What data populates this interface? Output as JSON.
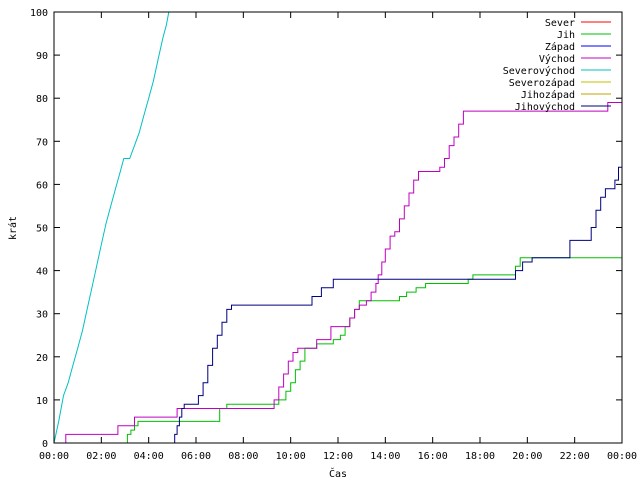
{
  "chart_data": {
    "type": "line",
    "xlabel": "Čas",
    "ylabel": "krát",
    "xlim": [
      0,
      24
    ],
    "ylim": [
      0,
      100
    ],
    "x_ticks": [
      0,
      2,
      4,
      6,
      8,
      10,
      12,
      14,
      16,
      18,
      20,
      22,
      24
    ],
    "x_tick_labels": [
      "00:00",
      "02:00",
      "04:00",
      "06:00",
      "08:00",
      "10:00",
      "12:00",
      "14:00",
      "16:00",
      "18:00",
      "20:00",
      "22:00",
      "00:00"
    ],
    "y_ticks": [
      0,
      10,
      20,
      30,
      40,
      50,
      60,
      70,
      80,
      90,
      100
    ],
    "grid": false,
    "legend_position": "top-right",
    "series": [
      {
        "name": "Sever",
        "color": "#ff0000",
        "points": []
      },
      {
        "name": "Jih",
        "color": "#00c000",
        "points": [
          [
            0,
            0
          ],
          [
            3.1,
            0
          ],
          [
            3.1,
            2
          ],
          [
            3.25,
            2
          ],
          [
            3.25,
            3
          ],
          [
            3.4,
            3
          ],
          [
            3.4,
            4
          ],
          [
            3.55,
            4
          ],
          [
            3.55,
            5
          ],
          [
            7.0,
            5
          ],
          [
            7.0,
            8
          ],
          [
            7.3,
            8
          ],
          [
            7.3,
            9
          ],
          [
            9.5,
            9
          ],
          [
            9.5,
            10
          ],
          [
            9.8,
            10
          ],
          [
            9.8,
            12
          ],
          [
            10.0,
            12
          ],
          [
            10.0,
            14
          ],
          [
            10.2,
            14
          ],
          [
            10.2,
            17
          ],
          [
            10.4,
            17
          ],
          [
            10.4,
            19
          ],
          [
            10.6,
            19
          ],
          [
            10.6,
            22
          ],
          [
            11.1,
            22
          ],
          [
            11.1,
            23
          ],
          [
            11.8,
            23
          ],
          [
            11.8,
            24
          ],
          [
            12.1,
            24
          ],
          [
            12.1,
            25
          ],
          [
            12.3,
            25
          ],
          [
            12.3,
            27
          ],
          [
            12.5,
            27
          ],
          [
            12.5,
            29
          ],
          [
            12.7,
            29
          ],
          [
            12.7,
            31
          ],
          [
            12.9,
            31
          ],
          [
            12.9,
            33
          ],
          [
            14.6,
            33
          ],
          [
            14.6,
            34
          ],
          [
            14.9,
            34
          ],
          [
            14.9,
            35
          ],
          [
            15.3,
            35
          ],
          [
            15.3,
            36
          ],
          [
            15.7,
            36
          ],
          [
            15.7,
            37
          ],
          [
            17.5,
            37
          ],
          [
            17.5,
            38
          ],
          [
            17.7,
            38
          ],
          [
            17.7,
            39
          ],
          [
            19.5,
            39
          ],
          [
            19.5,
            41
          ],
          [
            19.7,
            41
          ],
          [
            19.7,
            43
          ],
          [
            24,
            43
          ]
        ]
      },
      {
        "name": "Západ",
        "color": "#0000ff",
        "points": []
      },
      {
        "name": "Východ",
        "color": "#c000c0",
        "points": [
          [
            0.5,
            0
          ],
          [
            0.5,
            2
          ],
          [
            2.7,
            2
          ],
          [
            2.7,
            4
          ],
          [
            3.4,
            4
          ],
          [
            3.4,
            6
          ],
          [
            5.2,
            6
          ],
          [
            5.2,
            8
          ],
          [
            9.3,
            8
          ],
          [
            9.3,
            10
          ],
          [
            9.5,
            10
          ],
          [
            9.5,
            13
          ],
          [
            9.7,
            13
          ],
          [
            9.7,
            16
          ],
          [
            9.9,
            16
          ],
          [
            9.9,
            19
          ],
          [
            10.1,
            19
          ],
          [
            10.1,
            21
          ],
          [
            10.3,
            21
          ],
          [
            10.3,
            22
          ],
          [
            11.1,
            22
          ],
          [
            11.1,
            24
          ],
          [
            11.7,
            24
          ],
          [
            11.7,
            27
          ],
          [
            12.5,
            27
          ],
          [
            12.5,
            29
          ],
          [
            12.7,
            29
          ],
          [
            12.7,
            31
          ],
          [
            12.9,
            31
          ],
          [
            12.9,
            32
          ],
          [
            13.2,
            32
          ],
          [
            13.2,
            33
          ],
          [
            13.4,
            33
          ],
          [
            13.4,
            35
          ],
          [
            13.6,
            35
          ],
          [
            13.6,
            37
          ],
          [
            13.7,
            37
          ],
          [
            13.7,
            39
          ],
          [
            13.85,
            39
          ],
          [
            13.85,
            42
          ],
          [
            14.0,
            42
          ],
          [
            14.0,
            45
          ],
          [
            14.2,
            45
          ],
          [
            14.2,
            48
          ],
          [
            14.4,
            48
          ],
          [
            14.4,
            49
          ],
          [
            14.6,
            49
          ],
          [
            14.6,
            52
          ],
          [
            14.8,
            52
          ],
          [
            14.8,
            55
          ],
          [
            15.0,
            55
          ],
          [
            15.0,
            58
          ],
          [
            15.2,
            58
          ],
          [
            15.2,
            61
          ],
          [
            15.4,
            61
          ],
          [
            15.4,
            63
          ],
          [
            16.3,
            63
          ],
          [
            16.3,
            64
          ],
          [
            16.5,
            64
          ],
          [
            16.5,
            66
          ],
          [
            16.7,
            66
          ],
          [
            16.7,
            69
          ],
          [
            16.9,
            69
          ],
          [
            16.9,
            71
          ],
          [
            17.1,
            71
          ],
          [
            17.1,
            74
          ],
          [
            17.3,
            74
          ],
          [
            17.3,
            77
          ],
          [
            23.4,
            77
          ],
          [
            23.4,
            79
          ],
          [
            24,
            79
          ]
        ]
      },
      {
        "name": "Severovýchod",
        "color": "#00c0c0",
        "points": [
          [
            0,
            0
          ],
          [
            0.2,
            5
          ],
          [
            0.4,
            11
          ],
          [
            0.6,
            14
          ],
          [
            0.8,
            18
          ],
          [
            1.0,
            22
          ],
          [
            1.2,
            26
          ],
          [
            1.4,
            31
          ],
          [
            1.6,
            36
          ],
          [
            1.8,
            41
          ],
          [
            2.0,
            46
          ],
          [
            2.2,
            51
          ],
          [
            2.4,
            55
          ],
          [
            2.6,
            59
          ],
          [
            2.8,
            63
          ],
          [
            2.95,
            66
          ],
          [
            3.2,
            66
          ],
          [
            3.4,
            69
          ],
          [
            3.6,
            72
          ],
          [
            3.8,
            76
          ],
          [
            4.0,
            80
          ],
          [
            4.2,
            84
          ],
          [
            4.4,
            89
          ],
          [
            4.6,
            94
          ],
          [
            4.75,
            97
          ],
          [
            4.85,
            100
          ]
        ]
      },
      {
        "name": "Severozápad",
        "color": "#c0c000",
        "points": []
      },
      {
        "name": "Jihozápad",
        "color": "#c0a000",
        "points": []
      },
      {
        "name": "Jihovýchod",
        "color": "#000080",
        "points": [
          [
            0,
            0
          ],
          [
            5.1,
            0
          ],
          [
            5.1,
            2
          ],
          [
            5.2,
            2
          ],
          [
            5.2,
            4
          ],
          [
            5.3,
            4
          ],
          [
            5.3,
            6
          ],
          [
            5.4,
            6
          ],
          [
            5.4,
            8
          ],
          [
            5.5,
            8
          ],
          [
            5.5,
            9
          ],
          [
            6.1,
            9
          ],
          [
            6.1,
            11
          ],
          [
            6.3,
            11
          ],
          [
            6.3,
            14
          ],
          [
            6.5,
            14
          ],
          [
            6.5,
            18
          ],
          [
            6.7,
            18
          ],
          [
            6.7,
            22
          ],
          [
            6.9,
            22
          ],
          [
            6.9,
            25
          ],
          [
            7.1,
            25
          ],
          [
            7.1,
            28
          ],
          [
            7.3,
            28
          ],
          [
            7.3,
            31
          ],
          [
            7.5,
            31
          ],
          [
            7.5,
            32
          ],
          [
            10.9,
            32
          ],
          [
            10.9,
            34
          ],
          [
            11.3,
            34
          ],
          [
            11.3,
            36
          ],
          [
            11.8,
            36
          ],
          [
            11.8,
            38
          ],
          [
            19.5,
            38
          ],
          [
            19.5,
            40
          ],
          [
            19.8,
            40
          ],
          [
            19.8,
            42
          ],
          [
            20.2,
            42
          ],
          [
            20.2,
            43
          ],
          [
            21.8,
            43
          ],
          [
            21.8,
            47
          ],
          [
            22.7,
            47
          ],
          [
            22.7,
            50
          ],
          [
            22.9,
            50
          ],
          [
            22.9,
            54
          ],
          [
            23.1,
            54
          ],
          [
            23.1,
            57
          ],
          [
            23.3,
            57
          ],
          [
            23.3,
            59
          ],
          [
            23.7,
            59
          ],
          [
            23.7,
            61
          ],
          [
            23.85,
            61
          ],
          [
            23.85,
            64
          ],
          [
            24,
            64
          ]
        ]
      }
    ]
  }
}
